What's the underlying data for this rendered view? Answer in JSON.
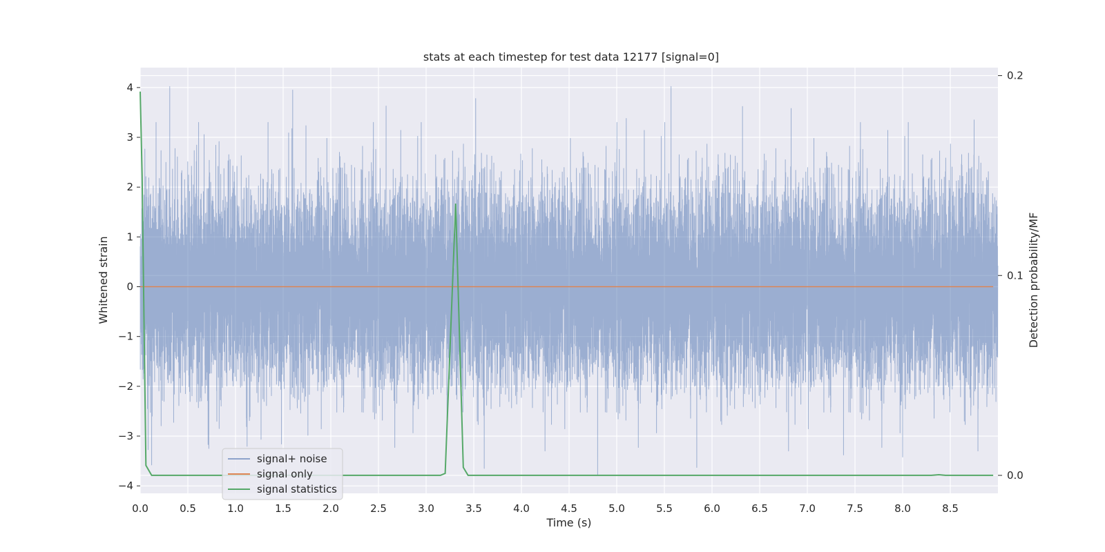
{
  "chart_data": {
    "type": "line",
    "title": "stats at each timestep for test data 12177 [signal=0]",
    "xlabel": "Time (s)",
    "ylabel": "Whitened strain",
    "y2label": "Detection probability/MF",
    "xlim": [
      0,
      9.0
    ],
    "ylim": [
      -4.15,
      4.4
    ],
    "y2lim": [
      -0.009,
      0.204
    ],
    "xticks": [
      0.0,
      0.5,
      1.0,
      1.5,
      2.0,
      2.5,
      3.0,
      3.5,
      4.0,
      4.5,
      5.0,
      5.5,
      6.0,
      6.5,
      7.0,
      7.5,
      8.0,
      8.5
    ],
    "xtick_labels": [
      "0.0",
      "0.5",
      "1.0",
      "1.5",
      "2.0",
      "2.5",
      "3.0",
      "3.5",
      "4.0",
      "4.5",
      "5.0",
      "5.5",
      "6.0",
      "6.5",
      "7.0",
      "7.5",
      "8.0",
      "8.5"
    ],
    "yticks": [
      4,
      3,
      2,
      1,
      0,
      -1,
      -2,
      -3,
      -4
    ],
    "ytick_labels": [
      "4",
      "3",
      "2",
      "1",
      "0",
      "−1",
      "−2",
      "−3",
      "−4"
    ],
    "y2ticks": [
      0.2,
      0.1,
      0.0
    ],
    "y2tick_labels": [
      "0.2",
      "0.1",
      "0.0"
    ],
    "grid": true,
    "legend_placement": "lower-left",
    "colors": {
      "background": "#eaeaf2",
      "grid": "#ffffff",
      "noise": "#4c72b0",
      "signal": "#dd8452",
      "statistics": "#55a868"
    },
    "noise_sample_rate_hz": 2048,
    "series": [
      {
        "name": "signal+ noise",
        "kind": "noise",
        "amplitude_std": 0.95,
        "notable_peaks": [
          {
            "x": 0.31,
            "y": 4.02
          },
          {
            "x": 1.6,
            "y": 3.95
          },
          {
            "x": 2.58,
            "y": 3.63
          },
          {
            "x": 3.52,
            "y": 3.78
          },
          {
            "x": 5.57,
            "y": 4.02
          },
          {
            "x": 5.1,
            "y": 3.38
          },
          {
            "x": 6.32,
            "y": 3.62
          },
          {
            "x": 6.83,
            "y": 3.58
          },
          {
            "x": 8.75,
            "y": 3.35
          },
          {
            "x": 4.8,
            "y": -3.77
          },
          {
            "x": 0.12,
            "y": -3.58
          },
          {
            "x": 0.72,
            "y": -3.25
          },
          {
            "x": 3.61,
            "y": -3.65
          },
          {
            "x": 5.84,
            "y": -3.63
          },
          {
            "x": 8.0,
            "y": -3.42
          },
          {
            "x": 7.38,
            "y": -3.38
          },
          {
            "x": 8.79,
            "y": -3.3
          }
        ]
      },
      {
        "name": "signal only",
        "kind": "constant",
        "x": [
          0,
          8.95
        ],
        "y": [
          0,
          0
        ]
      },
      {
        "name": "signal statistics",
        "kind": "statistic",
        "axis": "right",
        "x": [
          0.0,
          0.02,
          0.06,
          0.12,
          0.2,
          3.0,
          3.15,
          3.2,
          3.31,
          3.39,
          3.44,
          3.5,
          8.3,
          8.38,
          8.45,
          8.95
        ],
        "y": [
          0.192,
          0.15,
          0.005,
          0.0,
          0.0,
          0.0,
          0.0,
          0.001,
          0.136,
          0.004,
          0.0,
          0.0,
          0.0,
          0.0003,
          0.0,
          0.0
        ]
      }
    ]
  }
}
